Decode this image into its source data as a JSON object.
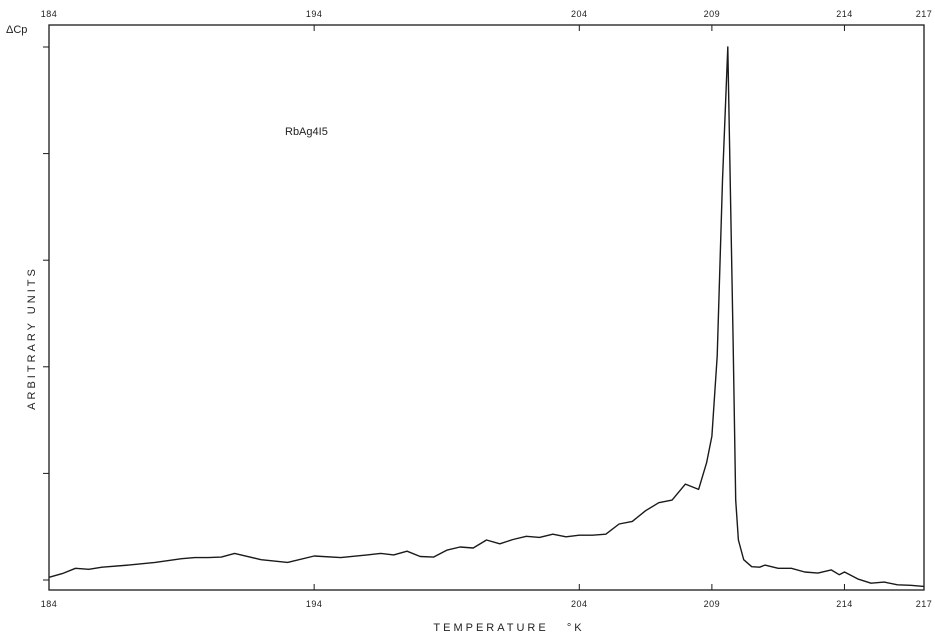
{
  "chart_data": {
    "type": "line",
    "title": "",
    "xlabel": "TEMPERATURE   °K",
    "ylabel": "ARBITRARY   UNITS",
    "y_axis_symbol": "ΔCp",
    "annotation": "RbAg4I5",
    "xlim": [
      184,
      217
    ],
    "ylim": [
      0,
      100
    ],
    "grid": false,
    "legend": "none",
    "line_color": "#1a1a1a",
    "x_ticks_bottom": [
      {
        "value": 184,
        "label": "184"
      },
      {
        "value": 194,
        "label": "194"
      },
      {
        "value": 204,
        "label": "204"
      },
      {
        "value": 209,
        "label": "209"
      },
      {
        "value": 214,
        "label": "214"
      },
      {
        "value": 217,
        "label": "217"
      }
    ],
    "x_ticks_top": [
      {
        "value": 184,
        "label": "184"
      },
      {
        "value": 194,
        "label": "194"
      },
      {
        "value": 204,
        "label": "204"
      },
      {
        "value": 209,
        "label": "209"
      },
      {
        "value": 214,
        "label": "214"
      },
      {
        "value": 217,
        "label": "217"
      }
    ],
    "y_ticks": [
      0,
      20,
      40,
      60,
      80,
      100
    ],
    "series": [
      {
        "x": [
          184.0,
          184.5,
          185.0,
          185.5,
          186.0,
          187.0,
          188.0,
          189.0,
          189.5,
          190.0,
          190.5,
          191.0,
          192.0,
          193.0,
          194.0,
          195.0,
          196.0,
          196.5,
          197.0,
          197.5,
          198.0,
          198.5,
          199.0,
          199.5,
          200.0,
          200.5,
          201.0,
          201.5,
          202.0,
          202.5,
          203.0,
          203.5,
          204.0,
          204.5,
          205.0,
          205.5,
          206.0,
          206.5,
          207.0,
          207.5,
          208.0,
          208.5,
          208.8,
          209.0,
          209.2,
          209.4,
          209.6,
          209.8,
          209.9,
          210.0,
          210.2,
          210.5,
          210.8,
          211.0,
          211.5,
          212.0,
          212.5,
          213.0,
          213.5,
          213.8,
          214.0,
          214.2,
          214.5,
          215.0,
          215.5,
          216.0,
          216.5,
          217.0
        ],
        "y": [
          0.5,
          1.2,
          2.2,
          2.0,
          2.4,
          2.8,
          3.3,
          4.0,
          4.2,
          4.2,
          4.3,
          5.0,
          3.8,
          3.3,
          4.5,
          4.2,
          4.7,
          5.0,
          4.7,
          5.4,
          4.4,
          4.3,
          5.6,
          6.2,
          6.0,
          7.5,
          6.8,
          7.6,
          8.2,
          8.0,
          8.6,
          8.1,
          8.4,
          8.4,
          8.6,
          10.5,
          11.0,
          13.0,
          14.5,
          15.0,
          18.0,
          17.0,
          22.0,
          27.0,
          42.0,
          75.0,
          100.0,
          45.0,
          15.0,
          7.5,
          3.8,
          2.5,
          2.4,
          2.8,
          2.2,
          2.2,
          1.5,
          1.3,
          1.9,
          1.0,
          1.5,
          1.0,
          0.2,
          -0.6,
          -0.4,
          -0.9,
          -1.0,
          -1.2
        ]
      }
    ]
  }
}
